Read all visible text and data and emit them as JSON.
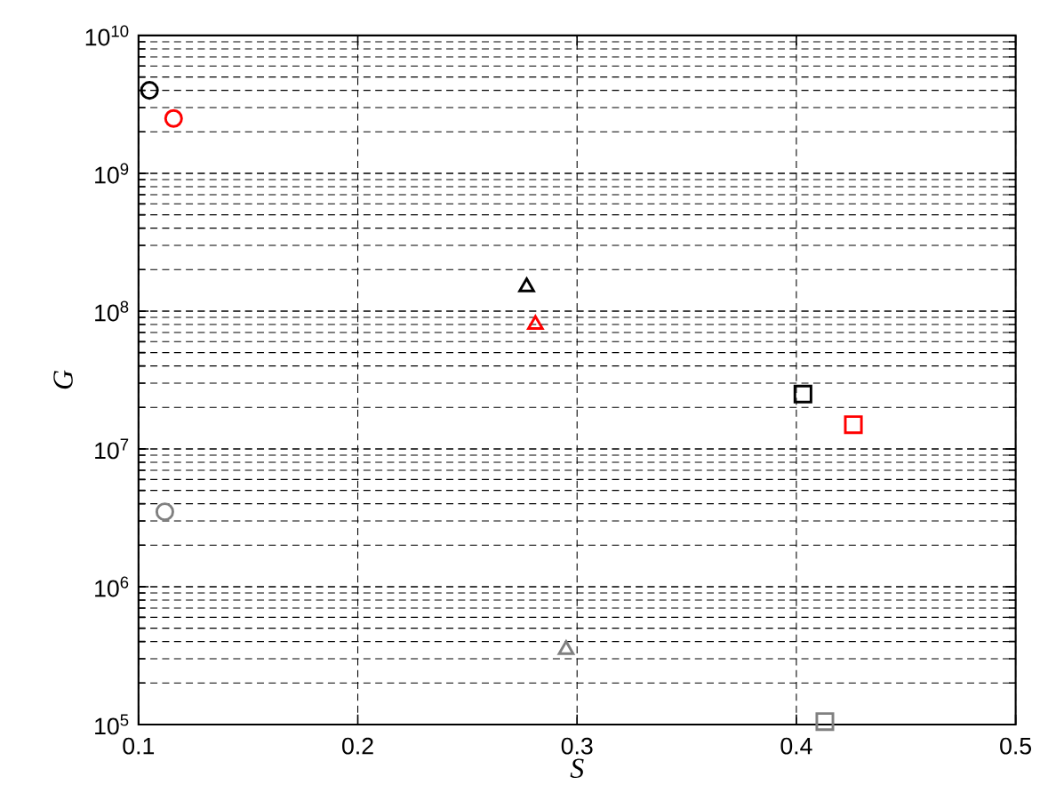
{
  "chart_data": {
    "type": "scatter",
    "xlabel": "S",
    "ylabel": "G",
    "log": "y",
    "grid": true,
    "xlim": [
      0.1,
      0.5
    ],
    "xticks": [
      0.1,
      0.2,
      0.3,
      0.4,
      0.5
    ],
    "ylim": [
      100000,
      10000000000
    ],
    "yticks": [
      {
        "value": 100000,
        "label": "10$^{5}$"
      },
      {
        "value": 1000000,
        "label": "10$^{6}$"
      },
      {
        "value": 10000000,
        "label": "10$^{7}$"
      },
      {
        "value": 100000000,
        "label": "10$^{8}$"
      },
      {
        "value": 1000000000,
        "label": "10$^{9}$"
      },
      {
        "value": 10000000000,
        "label": "10$^{10}$"
      }
    ],
    "series": [
      {
        "marker": "circle",
        "colors": [
          "#000000",
          "#ff0000",
          "#808080"
        ],
        "x": [
          0.105,
          0.116,
          0.112
        ],
        "values": [
          4000000000,
          2500000000,
          3500000
        ]
      },
      {
        "marker": "triangle",
        "colors": [
          "#000000",
          "#ff0000",
          "#808080"
        ],
        "x": [
          0.277,
          0.281,
          0.295
        ],
        "values": [
          150000000,
          80000000,
          350000
        ]
      },
      {
        "marker": "square",
        "colors": [
          "#000000",
          "#ff0000",
          "#808080"
        ],
        "x": [
          0.403,
          0.426,
          0.413
        ],
        "values": [
          25000000,
          15000000,
          105000
        ]
      }
    ]
  }
}
